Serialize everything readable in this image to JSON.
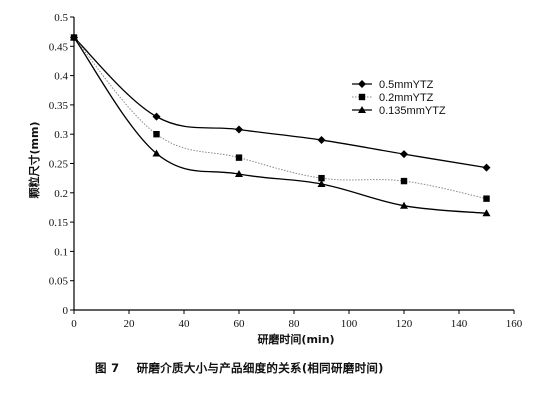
{
  "chart_data": {
    "type": "line",
    "xlabel": "研磨时间(min)",
    "ylabel": "颗粒尺寸(mm)",
    "xlim": [
      0,
      160
    ],
    "ylim": [
      0,
      0.5
    ],
    "x_ticks": [
      "0",
      "20",
      "40",
      "60",
      "80",
      "100",
      "120",
      "140",
      "160"
    ],
    "y_ticks": [
      "0",
      "0.05",
      "0.1",
      "0.15",
      "0.2",
      "0.25",
      "0.3",
      "0.35",
      "0.4",
      "0.45",
      "0.5"
    ],
    "grid": false,
    "legend_position": "top-right",
    "series": [
      {
        "name": "0.5mmYTZ",
        "marker": "diamond",
        "line_style": "solid",
        "color": "#000000",
        "x": [
          0,
          30,
          60,
          90,
          120,
          150
        ],
        "values": [
          0.465,
          0.33,
          0.308,
          0.29,
          0.266,
          0.243
        ]
      },
      {
        "name": "0.2mmYTZ",
        "marker": "square",
        "line_style": "dotted",
        "color": "#888888",
        "x": [
          0,
          30,
          60,
          90,
          120,
          150
        ],
        "values": [
          0.465,
          0.3,
          0.26,
          0.225,
          0.22,
          0.19
        ]
      },
      {
        "name": "0.135mmYTZ",
        "marker": "triangle",
        "line_style": "solid",
        "color": "#000000",
        "x": [
          0,
          30,
          60,
          90,
          120,
          150
        ],
        "values": [
          0.465,
          0.267,
          0.232,
          0.215,
          0.178,
          0.165
        ]
      }
    ],
    "caption": "图 7    研磨介质大小与产品细度的关系(相同研磨时间)"
  }
}
